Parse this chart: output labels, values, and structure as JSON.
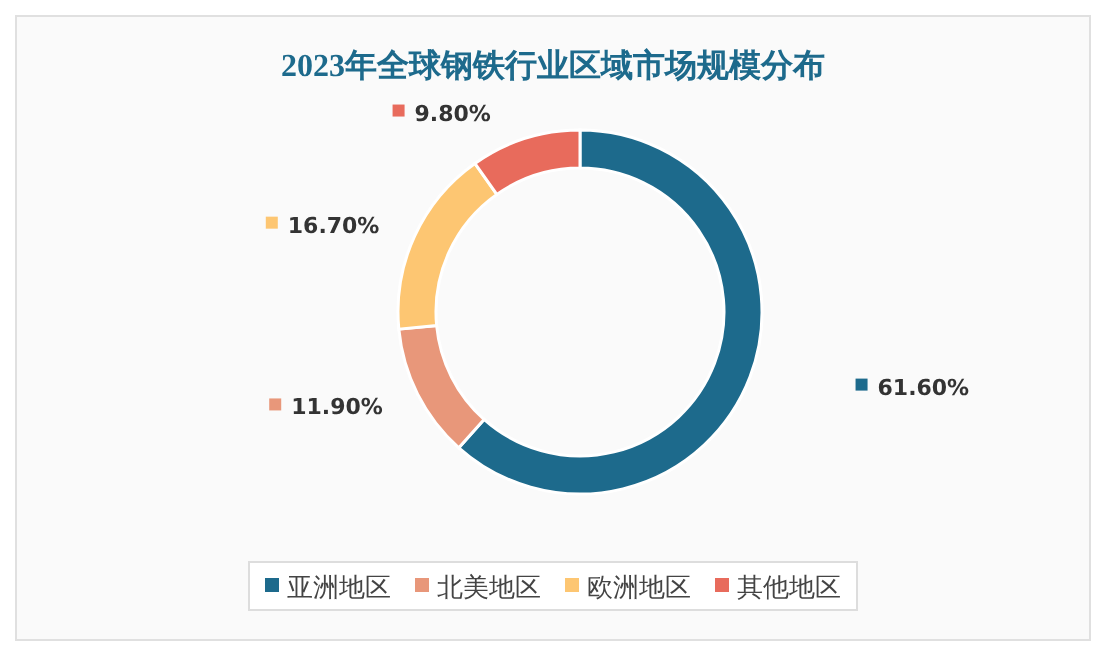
{
  "chart_data": {
    "type": "donut",
    "title": "2023年全球钢铁行业区域市场规模分布",
    "categories": [
      "亚洲地区",
      "北美地区",
      "欧洲地区",
      "其他地区"
    ],
    "values": [
      61.6,
      11.9,
      16.7,
      9.8
    ],
    "value_labels": [
      "61.60%",
      "11.90%",
      "16.70%",
      "9.80%"
    ],
    "colors": [
      "#1d6a8c",
      "#e8977a",
      "#fdc672",
      "#e86b5c"
    ],
    "legend": "bottom"
  }
}
